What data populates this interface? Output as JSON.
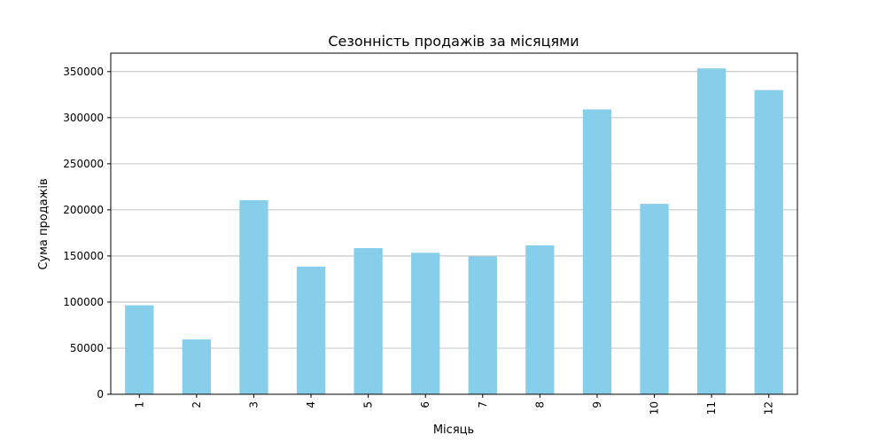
{
  "chart_data": {
    "type": "bar",
    "title": "Сезонність продажів за місяцями",
    "xlabel": "Місяць",
    "ylabel": "Сума продажів",
    "categories": [
      "1",
      "2",
      "3",
      "4",
      "5",
      "6",
      "7",
      "8",
      "9",
      "10",
      "11",
      "12"
    ],
    "values": [
      96500,
      59500,
      210500,
      138500,
      158500,
      153500,
      149500,
      161500,
      309000,
      206500,
      353500,
      330000
    ],
    "ylim": [
      0,
      370000
    ],
    "yticks": [
      0,
      50000,
      100000,
      150000,
      200000,
      250000,
      300000,
      350000
    ],
    "bar_color": "#87ceeb",
    "grid": "y",
    "x_tick_rotation": 90
  }
}
